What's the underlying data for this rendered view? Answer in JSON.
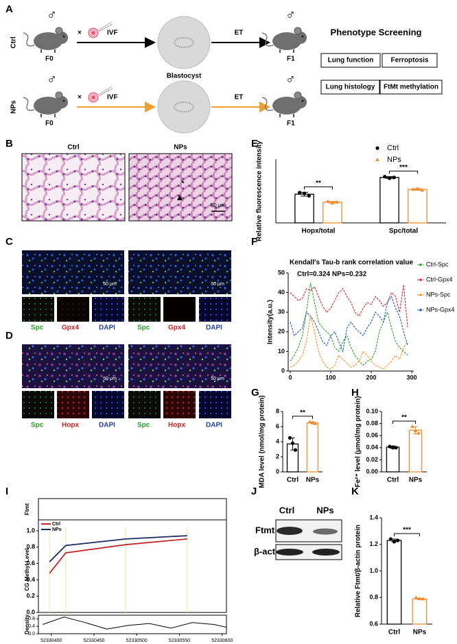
{
  "figure": {
    "panel_labels": [
      "A",
      "B",
      "C",
      "D",
      "E",
      "F",
      "G",
      "H",
      "I",
      "J",
      "K"
    ],
    "panel_a": {
      "groups": [
        "Ctrl",
        "NPs"
      ],
      "sex_symbol": "♂",
      "cross": "×",
      "generation_parent": "F0",
      "generation_child": "F1",
      "ivf": "IVF",
      "et": "ET",
      "blastocyst": "Blastocyst",
      "screening_title": "Phenotype Screening",
      "screening_items": [
        "Lung function",
        "Ferroptosis",
        "Lung histology",
        "FtMt methylation"
      ]
    },
    "panel_b": {
      "titles": [
        "Ctrl",
        "NPs"
      ],
      "scale_bar": "50 μm"
    },
    "panel_c": {
      "channels": [
        "Spc",
        "Gpx4",
        "DAPI"
      ],
      "scale_bar": "50 μm"
    },
    "panel_d": {
      "channels": [
        "Spc",
        "Hopx",
        "DAPI"
      ],
      "scale_bar": "50 μm"
    },
    "panel_j": {
      "groups": [
        "Ctrl",
        "NPs"
      ],
      "proteins": [
        "Ftmt",
        "β-actin"
      ]
    }
  },
  "chart_data": [
    {
      "type": "bar",
      "ylabel": "Relative fluorescence intensity",
      "categories": [
        "Hopx/total",
        "Spc/total"
      ],
      "ylim": [
        0,
        0.4
      ],
      "series": [
        {
          "name": "Ctrl",
          "color": "#000000",
          "values": [
            0.18,
            0.285
          ],
          "errors": [
            0.012,
            0.006
          ],
          "points": [
            [
              0.19,
              0.185,
              0.17
            ],
            [
              0.29,
              0.28,
              0.285
            ]
          ]
        },
        {
          "name": "NPs",
          "color": "#f08c2e",
          "values": [
            0.13,
            0.21
          ],
          "errors": [
            0.005,
            0.005
          ],
          "points": [
            [
              0.135,
              0.125,
              0.13
            ],
            [
              0.21,
              0.215,
              0.205
            ]
          ]
        }
      ],
      "significance": [
        "**",
        "***"
      ]
    },
    {
      "type": "line",
      "title": "Kendall's Tau-b rank correlation value",
      "subtitle": "Ctrl=0.324  NPs=0.232",
      "ylabel": "Intensity(a.u.)",
      "x": [
        0,
        10,
        20,
        30,
        40,
        50,
        60,
        70,
        80,
        90,
        100,
        110,
        120,
        130,
        140,
        150,
        160,
        170,
        180,
        190,
        200,
        210,
        220,
        230,
        240,
        250,
        260,
        270,
        280,
        290
      ],
      "xlim": [
        -5,
        305
      ],
      "xticks": [
        0,
        100,
        200,
        300
      ],
      "ylim": [
        0,
        50
      ],
      "yticks": [
        0,
        10,
        20,
        30,
        40,
        50
      ],
      "series": [
        {
          "name": "Ctrl-Spc",
          "color": "#2ca02c",
          "values": [
            5,
            8,
            12,
            18,
            30,
            45,
            35,
            25,
            22,
            20,
            18,
            12,
            10,
            15,
            18,
            12,
            8,
            5,
            3,
            5,
            6,
            10,
            20,
            25,
            30,
            22,
            15,
            12,
            10,
            8
          ]
        },
        {
          "name": "Ctrl-Gpx4",
          "color": "#d62728",
          "values": [
            40,
            38,
            36,
            37,
            42,
            41,
            43,
            38,
            33,
            30,
            32,
            36,
            40,
            42,
            38,
            35,
            30,
            28,
            32,
            35,
            34,
            38,
            36,
            33,
            35,
            40,
            38,
            30,
            44,
            22
          ]
        },
        {
          "name": "NPs-Spc",
          "color": "#ff8c1a",
          "values": [
            2,
            3,
            5,
            8,
            15,
            28,
            20,
            10,
            5,
            2,
            1,
            3,
            8,
            6,
            4,
            2,
            3,
            5,
            10,
            8,
            5,
            3,
            2,
            1,
            3,
            5,
            8,
            6,
            12,
            15
          ]
        },
        {
          "name": "NPs-Gpx4",
          "color": "#1f5fbf",
          "values": [
            25,
            18,
            20,
            22,
            30,
            28,
            25,
            20,
            15,
            13,
            18,
            20,
            15,
            10,
            22,
            25,
            22,
            20,
            18,
            22,
            25,
            30,
            28,
            25,
            35,
            38,
            32,
            28,
            20,
            13
          ]
        }
      ]
    },
    {
      "type": "bar",
      "ylabel": "MDA level (nmol/mg protein)",
      "categories": [
        "Ctrl",
        "NPs"
      ],
      "colors": [
        "#000000",
        "#f08c2e"
      ],
      "values": [
        3.7,
        6.5
      ],
      "errors": [
        0.8,
        0.15
      ],
      "points": [
        [
          4.5,
          3.8,
          2.9
        ],
        [
          6.6,
          6.5,
          6.4
        ]
      ],
      "ylim": [
        0,
        8
      ],
      "yticks": [
        0,
        2,
        4,
        6,
        8
      ],
      "significance": "**"
    },
    {
      "type": "bar",
      "ylabel": "Fe²⁺ level (μmol/mg protein)",
      "categories": [
        "Ctrl",
        "NPs"
      ],
      "colors": [
        "#000000",
        "#f08c2e"
      ],
      "values": [
        0.041,
        0.069
      ],
      "errors": [
        0.002,
        0.006
      ],
      "points": [
        [
          0.042,
          0.04,
          0.04
        ],
        [
          0.075,
          0.068,
          0.064
        ]
      ],
      "ylim": [
        0,
        0.1
      ],
      "yticks": [
        {
          "value": 0,
          "label": "0.00"
        },
        {
          "value": 0.02,
          "label": "0.02"
        },
        {
          "value": 0.04,
          "label": "0.04"
        },
        {
          "value": 0.06,
          "label": "0.06"
        },
        {
          "value": 0.08,
          "label": "0.08"
        },
        {
          "value": 0.1,
          "label": "0.10"
        }
      ],
      "significance": "**"
    },
    {
      "type": "line",
      "ylabel": "CG Methyl Level",
      "track_label": "Ftmt",
      "x": [
        52330398,
        52330417,
        52330487,
        52330559
      ],
      "xlim": [
        52330385,
        52330605
      ],
      "xticks": [
        52330400,
        52330450,
        52330500,
        52330550,
        52330600
      ],
      "ylim": [
        0,
        1.05
      ],
      "yticks": [
        {
          "value": 0,
          "label": "0.0"
        },
        0.2,
        0.4,
        0.6,
        0.8,
        {
          "value": 1,
          "label": "1.0"
        }
      ],
      "series": [
        {
          "name": "Ctrl",
          "color": "#c0272d",
          "values": [
            0.48,
            0.73,
            0.83,
            0.9
          ]
        },
        {
          "name": "NPs",
          "color": "#1b2a5e",
          "values": [
            0.62,
            0.82,
            0.9,
            0.94
          ]
        }
      ],
      "density": {
        "ylabel": "Density",
        "x": [
          52330390,
          52330415,
          52330440,
          52330465,
          52330490,
          52330515,
          52330540,
          52330565,
          52330590,
          52330605
        ],
        "values": [
          0.5,
          0.9,
          0.6,
          0.25,
          0.45,
          0.55,
          0.3,
          0.6,
          0.5,
          0.35
        ],
        "ylim": [
          0,
          1
        ],
        "yticks": [
          {
            "value": 0,
            "label": "0.0"
          },
          0.4,
          0.8
        ]
      }
    },
    {
      "type": "bar",
      "ylabel": "Relative Ftmt/β-actin protein",
      "categories": [
        "Ctrl",
        "NPs"
      ],
      "colors": [
        "#000000",
        "#f08c2e"
      ],
      "values": [
        1.23,
        0.79
      ],
      "errors": [
        0.01,
        0.005
      ],
      "points": [
        [
          1.24,
          1.22,
          1.23
        ],
        [
          0.8,
          0.79,
          0.79
        ]
      ],
      "ylim": [
        0.6,
        1.4
      ],
      "yticks": [
        0.6,
        0.8,
        {
          "value": 1,
          "label": "1.0"
        },
        1.2,
        1.4
      ],
      "significance": "***"
    }
  ]
}
